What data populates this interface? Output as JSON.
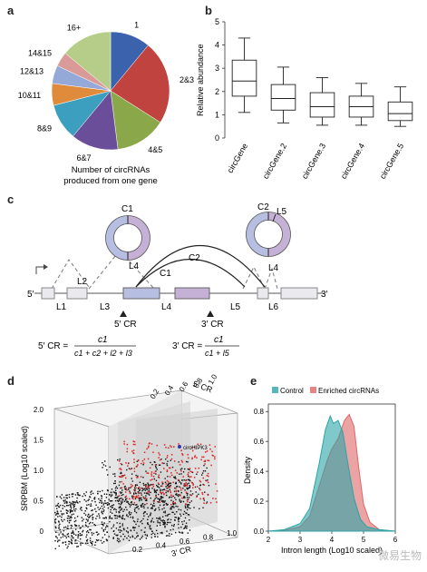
{
  "panels": {
    "a": "a",
    "b": "b",
    "c": "c",
    "d": "d",
    "e": "e"
  },
  "chart_data": [
    {
      "type": "pie",
      "panel": "a",
      "categories": [
        "1",
        "2&3",
        "4&5",
        "6&7",
        "8&9",
        "10&11",
        "12&13",
        "14&15",
        "16+"
      ],
      "values": [
        11,
        23,
        14,
        13,
        10,
        6,
        5,
        4,
        14
      ],
      "colors": [
        "#3a62ad",
        "#c0433f",
        "#8aa84a",
        "#6a4e9a",
        "#3c9fbf",
        "#e08b3b",
        "#95a9d8",
        "#d99a98",
        "#b6cd8a"
      ],
      "title": "Number of circRNAs produced from one gene"
    },
    {
      "type": "box",
      "panel": "b",
      "categories": [
        "circGene",
        "circGene.2",
        "circGene.3",
        "circGene.4",
        "circGene.5"
      ],
      "ylabel": "Relative abundance",
      "ylim": [
        0,
        5
      ],
      "yticks": [
        "0",
        "1",
        "2",
        "3",
        "4",
        "5"
      ],
      "boxes": [
        {
          "min": 1.1,
          "q1": 1.8,
          "median": 2.45,
          "q3": 3.35,
          "max": 4.3
        },
        {
          "min": 0.65,
          "q1": 1.2,
          "median": 1.7,
          "q3": 2.3,
          "max": 3.05
        },
        {
          "min": 0.55,
          "q1": 0.9,
          "median": 1.35,
          "q3": 1.95,
          "max": 2.6
        },
        {
          "min": 0.55,
          "q1": 0.9,
          "median": 1.35,
          "q3": 1.8,
          "max": 2.35
        },
        {
          "min": 0.5,
          "q1": 0.75,
          "median": 1.05,
          "q3": 1.55,
          "max": 2.2
        }
      ]
    },
    {
      "type": "scatter",
      "panel": "d",
      "zlabel": "SRPBM (Log10 scaled)",
      "xlabel": "3′ CR",
      "ylabel": "5′ CR",
      "zticks": [
        "0",
        "0.5",
        "1.0",
        "1.5",
        "2.0"
      ],
      "xticks": [
        "0.2",
        "0.4",
        "0.6",
        "0.8",
        "1.0"
      ],
      "yticks": [
        "0.2",
        "0.4",
        "0.6",
        "0.8",
        "1.0"
      ],
      "annotation": "circHIPK3"
    },
    {
      "type": "area",
      "panel": "e",
      "xlabel": "Intron length (Log10 scaled)",
      "ylabel": "Density",
      "xlim": [
        2,
        6
      ],
      "ylim": [
        0,
        0.85
      ],
      "xticks": [
        "2",
        "3",
        "4",
        "5",
        "6"
      ],
      "yticks": [
        "0.0",
        "0.2",
        "0.4",
        "0.6",
        "0.8"
      ],
      "series": [
        {
          "name": "Control",
          "color": "#2aa5a8",
          "x": [
            2.0,
            2.5,
            3.0,
            3.3,
            3.6,
            3.8,
            3.95,
            4.05,
            4.2,
            4.35,
            4.5,
            4.7,
            4.9,
            5.1,
            5.5,
            6.0
          ],
          "y": [
            0.0,
            0.01,
            0.05,
            0.15,
            0.45,
            0.68,
            0.77,
            0.72,
            0.74,
            0.66,
            0.46,
            0.22,
            0.08,
            0.03,
            0.01,
            0.0
          ]
        },
        {
          "name": "Enriched circRNAs",
          "color": "#e06666",
          "x": [
            2.0,
            2.5,
            3.0,
            3.3,
            3.6,
            3.85,
            4.0,
            4.2,
            4.4,
            4.55,
            4.7,
            4.85,
            5.0,
            5.2,
            5.5,
            6.0
          ],
          "y": [
            0.0,
            0.005,
            0.03,
            0.1,
            0.3,
            0.47,
            0.55,
            0.62,
            0.74,
            0.78,
            0.7,
            0.42,
            0.18,
            0.06,
            0.01,
            0.0
          ]
        }
      ]
    }
  ],
  "diagram_c": {
    "exon_labels": [
      "L1",
      "L2",
      "L3",
      "L4",
      "L5",
      "L6"
    ],
    "circle_left": {
      "top": "C1",
      "bottom": "L4"
    },
    "circle_right": {
      "top_a": "C2",
      "top_b": "L5",
      "bottom": "L4"
    },
    "arc_labels": [
      "C1",
      "C2"
    ],
    "end5": "5′",
    "end3": "3′",
    "cr5": "5′ CR",
    "cr3": "3′ CR",
    "eq5_left": "5′ CR =",
    "eq5_num": "c1",
    "eq5_den": "c1 + c2 + l2 + l3",
    "eq3_left": "3′ CR =",
    "eq3_num": "c1",
    "eq3_den": "c1 + l5"
  },
  "watermark": "微易生物"
}
